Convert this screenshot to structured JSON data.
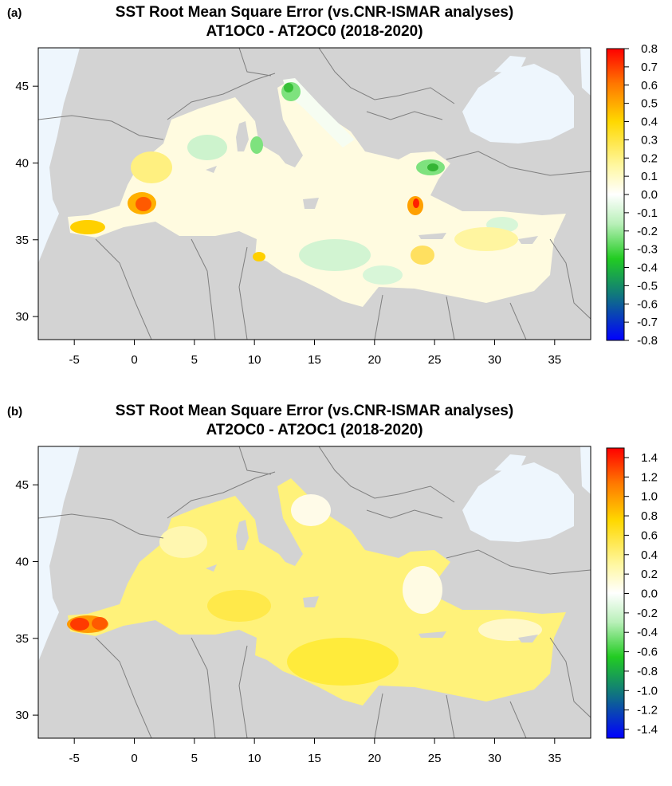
{
  "panels": [
    {
      "letter": "(a)",
      "title_line1": "SST Root Mean Square Error (vs.CNR-ISMAR analyses)",
      "title_line2": "AT1OC0 - AT2OC0 (2018-2020)",
      "colorbar_labels": [
        "0.8",
        "0.7",
        "0.6",
        "0.5",
        "0.4",
        "0.3",
        "0.2",
        "0.1",
        "0.0",
        "-0.1",
        "-0.2",
        "-0.3",
        "-0.4",
        "-0.5",
        "-0.6",
        "-0.7",
        "-0.8"
      ]
    },
    {
      "letter": "(b)",
      "title_line1": "SST Root Mean Square Error (vs.CNR-ISMAR analyses)",
      "title_line2": "AT2OC0 - AT2OC1 (2018-2020)",
      "colorbar_labels": [
        "1.4",
        "1.2",
        "1.0",
        "0.8",
        "0.6",
        "0.4",
        "0.2",
        "0.0",
        "-0.2",
        "-0.4",
        "-0.6",
        "-0.8",
        "-1.0",
        "-1.2",
        "-1.4"
      ]
    }
  ],
  "x_ticks": [
    "-5",
    "0",
    "5",
    "10",
    "15",
    "20",
    "25",
    "30",
    "35"
  ],
  "y_ticks": [
    "45",
    "40",
    "35",
    "30"
  ],
  "colors": {
    "land": "#d3d3d3",
    "atlantic": "#eef6fd",
    "border": "#7f7f7f",
    "cb_top": "#ff0000",
    "cb_mid": "#ffffff",
    "cb_bottom": "#0000ff"
  }
}
